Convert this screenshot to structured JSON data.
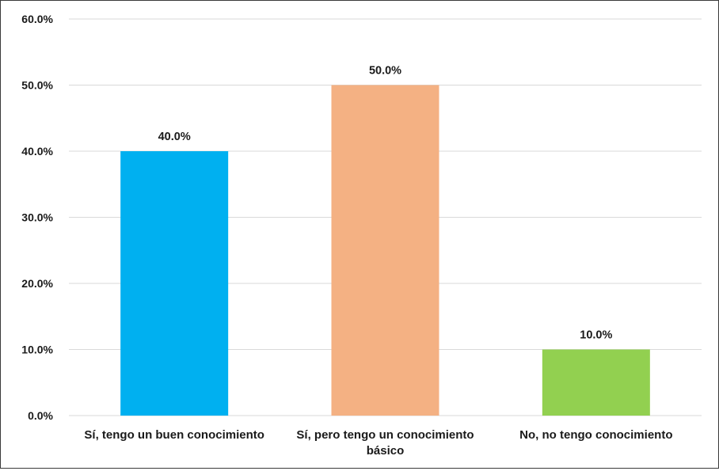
{
  "chart_data": {
    "type": "bar",
    "categories": [
      [
        "Sí, tengo un buen conocimiento"
      ],
      [
        "Sí, pero tengo un conocimiento",
        "básico"
      ],
      [
        "No, no tengo conocimiento"
      ]
    ],
    "values": [
      40.0,
      50.0,
      10.0
    ],
    "data_labels": [
      "40.0%",
      "50.0%",
      "10.0%"
    ],
    "bar_colors": [
      "#00b0f0",
      "#f4b183",
      "#92d050"
    ],
    "ylim": [
      0,
      60
    ],
    "yticks": [
      0,
      10,
      20,
      30,
      40,
      50,
      60
    ],
    "ytick_labels": [
      "0.0%",
      "10.0%",
      "20.0%",
      "30.0%",
      "40.0%",
      "50.0%",
      "60.0%"
    ],
    "grid": true,
    "title": "",
    "xlabel": "",
    "ylabel": ""
  }
}
